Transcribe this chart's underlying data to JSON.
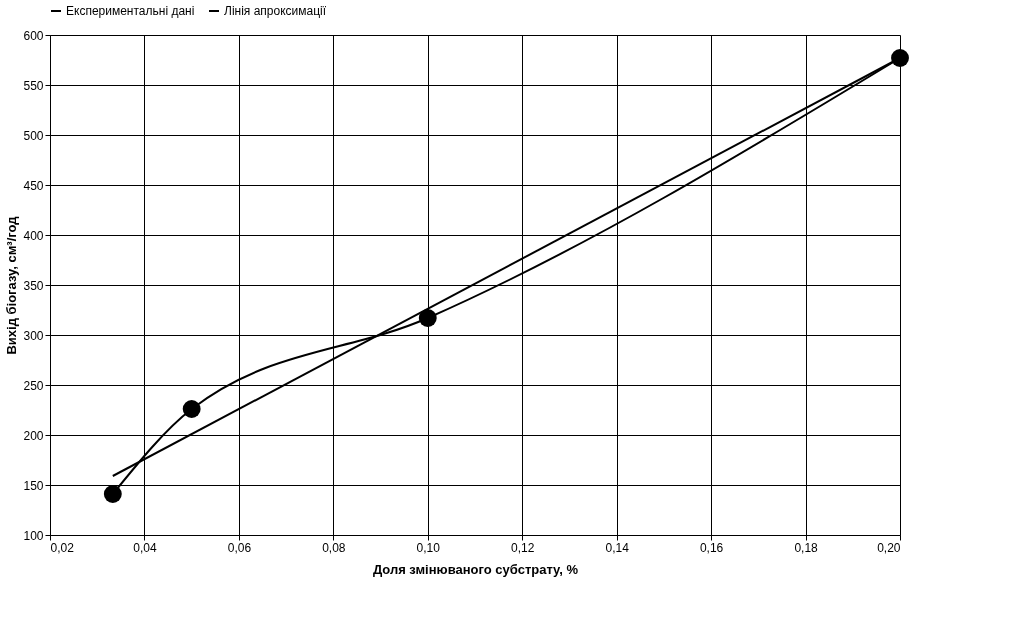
{
  "chart_data": {
    "type": "line",
    "xlabel": "Доля змінюваного субстрату, %",
    "ylabel": "Вихід біогазу, см³/год",
    "series": [
      {
        "name": "Експериментальні дані",
        "color": "#000000",
        "marker": "circle",
        "x": [
          0.0333,
          0.05,
          0.1,
          0.2
        ],
        "values": [
          141,
          226,
          317,
          577
        ]
      },
      {
        "name": "Лінія апроксимації",
        "color": "#000000",
        "marker": "none",
        "x": [
          0.0333,
          0.2
        ],
        "values": [
          159,
          577
        ]
      }
    ],
    "xlim": [
      0.02,
      0.2
    ],
    "xticks": [
      {
        "value": 0.02,
        "label": "0,02"
      },
      {
        "value": 0.04,
        "label": "0,04"
      },
      {
        "value": 0.06,
        "label": "0,06"
      },
      {
        "value": 0.08,
        "label": "0,08"
      },
      {
        "value": 0.1,
        "label": "0,10"
      },
      {
        "value": 0.12,
        "label": "0,12"
      },
      {
        "value": 0.14,
        "label": "0,14"
      },
      {
        "value": 0.16,
        "label": "0,16"
      },
      {
        "value": 0.18,
        "label": "0,18"
      },
      {
        "value": 0.2,
        "label": "0,20"
      }
    ],
    "ylim": [
      100,
      600
    ],
    "yticks": [
      100,
      150,
      200,
      250,
      300,
      350,
      400,
      450,
      500,
      550,
      600
    ],
    "grid": true,
    "legend": "top",
    "line_style": "solid"
  }
}
